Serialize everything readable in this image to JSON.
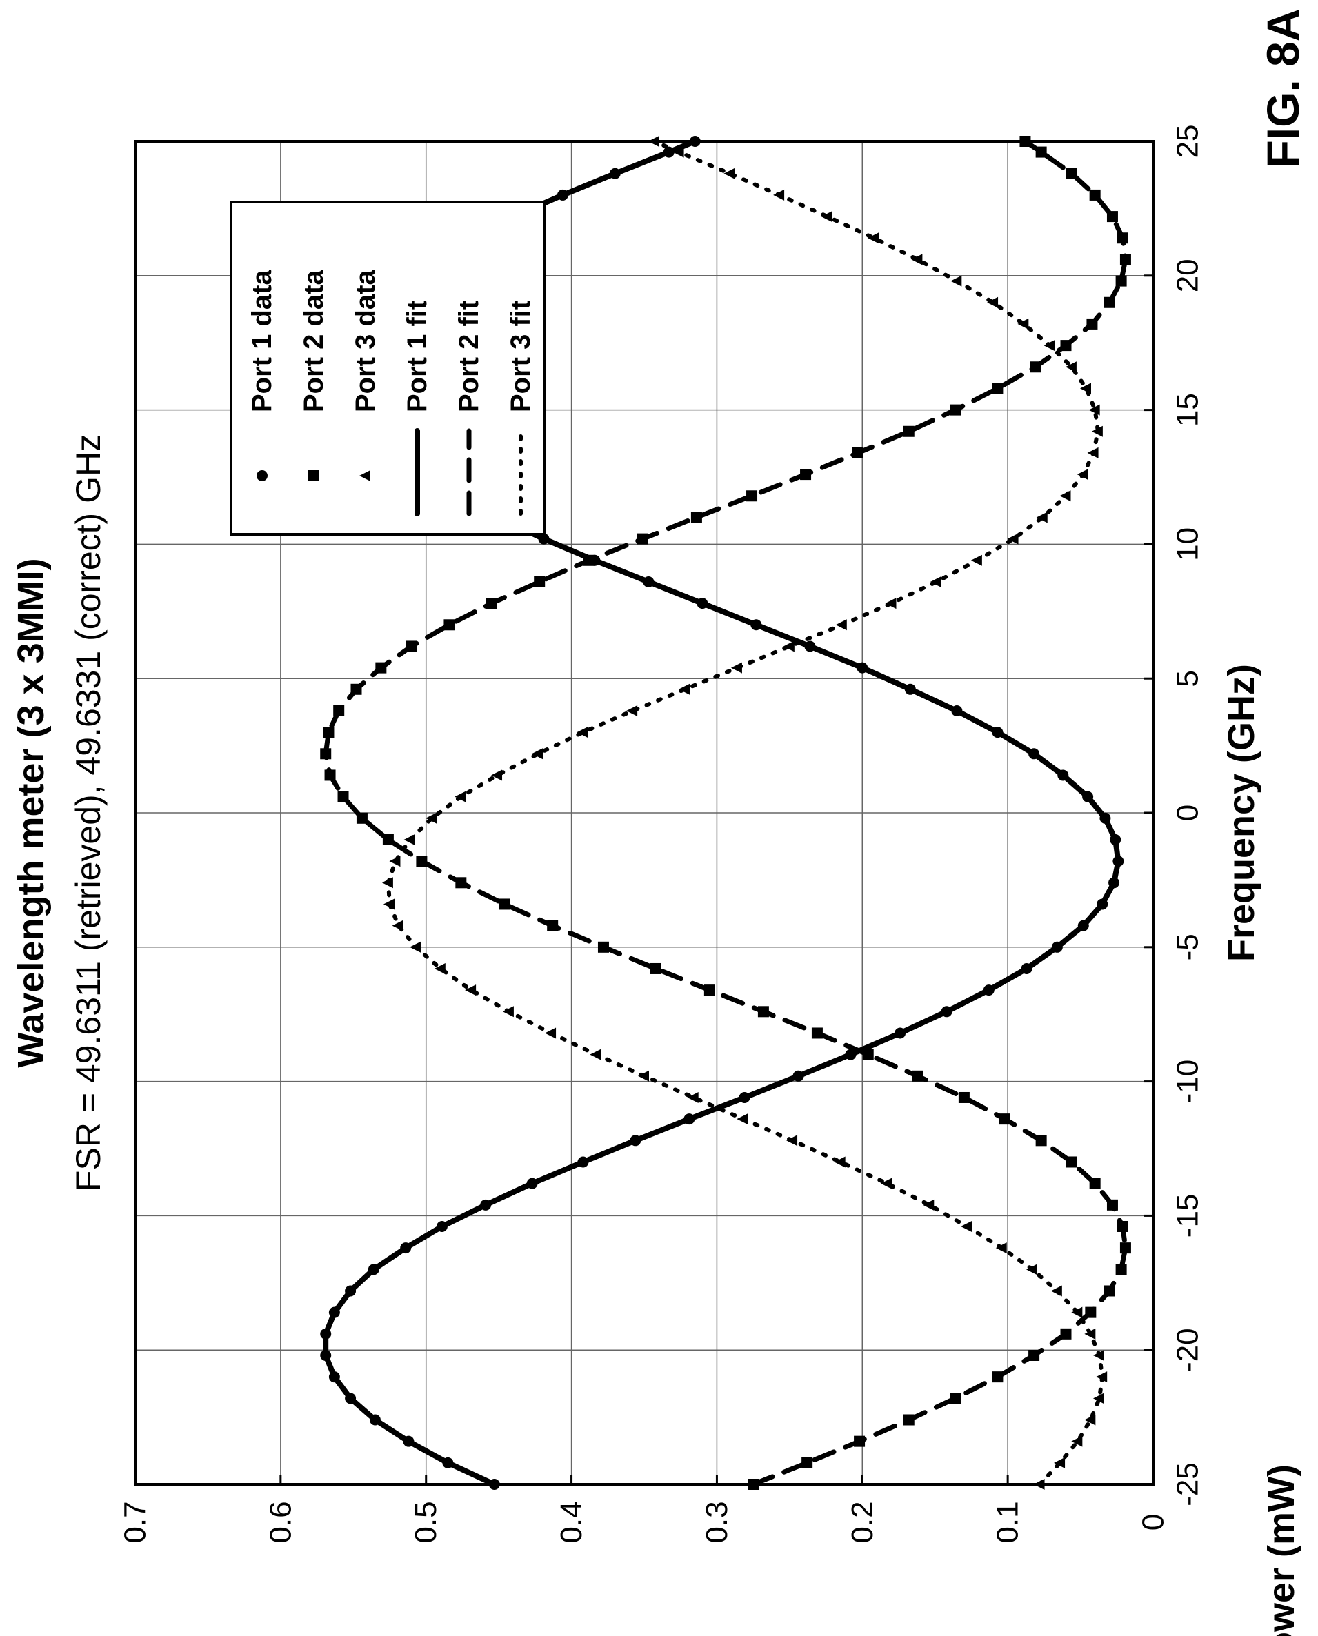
{
  "figure_label": "FIG. 8A",
  "chart_data": {
    "type": "scatter",
    "title": "Wavelength meter (3 x 3MMI)",
    "subtitle": "FSR = 49.6311 (retrieved), 49.6331 (correct) GHz",
    "xlabel": "Frequency (GHz)",
    "ylabel": "Power (mW)",
    "xlim": [
      -25,
      25
    ],
    "ylim": [
      0,
      0.7
    ],
    "xticks": [
      "-25",
      "-20",
      "-15",
      "-10",
      "-5",
      "0",
      "5",
      "10",
      "15",
      "20",
      "25"
    ],
    "yticks": [
      "0",
      "0.1",
      "0.2",
      "0.3",
      "0.4",
      "0.5",
      "0.6",
      "0.7"
    ],
    "grid": true,
    "legend_position": "top-left",
    "x": [
      -25.0,
      -24.2,
      -23.4,
      -22.6,
      -21.8,
      -21.0,
      -20.2,
      -19.4,
      -18.6,
      -17.8,
      -17.0,
      -16.2,
      -15.4,
      -14.6,
      -13.8,
      -13.0,
      -12.2,
      -11.4,
      -10.6,
      -9.8,
      -9.0,
      -8.2,
      -7.4,
      -6.6,
      -5.8,
      -5.0,
      -4.2,
      -3.4,
      -2.6,
      -1.8,
      -1.0,
      -0.2,
      0.6,
      1.4,
      2.2,
      3.0,
      3.8,
      4.6,
      5.4,
      6.2,
      7.0,
      7.8,
      8.6,
      9.4,
      10.2,
      11.0,
      11.8,
      12.6,
      13.4,
      14.2,
      15.0,
      15.8,
      16.6,
      17.4,
      18.2,
      19.0,
      19.8,
      20.6,
      21.4,
      22.2,
      23.0,
      23.8,
      24.6,
      25.0
    ],
    "series": [
      {
        "name": "Port 1 data",
        "marker": "circle",
        "color": "#000000",
        "values": [
          0.453,
          0.485,
          0.512,
          0.535,
          0.552,
          0.563,
          0.569,
          0.569,
          0.563,
          0.552,
          0.536,
          0.514,
          0.489,
          0.459,
          0.427,
          0.392,
          0.356,
          0.319,
          0.281,
          0.244,
          0.208,
          0.174,
          0.142,
          0.113,
          0.087,
          0.066,
          0.048,
          0.035,
          0.027,
          0.024,
          0.026,
          0.033,
          0.045,
          0.062,
          0.082,
          0.107,
          0.135,
          0.167,
          0.2,
          0.236,
          0.273,
          0.31,
          0.347,
          0.384,
          0.419,
          0.451,
          0.481,
          0.508,
          0.53,
          0.548,
          0.561,
          0.568,
          0.57,
          0.566,
          0.557,
          0.542,
          0.523,
          0.499,
          0.471,
          0.44,
          0.406,
          0.37,
          0.333,
          0.315
        ]
      },
      {
        "name": "Port 2 data",
        "marker": "square",
        "color": "#000000",
        "values": [
          0.275,
          0.238,
          0.202,
          0.168,
          0.136,
          0.107,
          0.082,
          0.06,
          0.043,
          0.03,
          0.022,
          0.019,
          0.021,
          0.028,
          0.04,
          0.056,
          0.077,
          0.102,
          0.13,
          0.162,
          0.196,
          0.231,
          0.268,
          0.305,
          0.342,
          0.378,
          0.413,
          0.446,
          0.476,
          0.503,
          0.526,
          0.544,
          0.557,
          0.566,
          0.569,
          0.567,
          0.56,
          0.548,
          0.531,
          0.51,
          0.484,
          0.455,
          0.422,
          0.388,
          0.351,
          0.314,
          0.276,
          0.239,
          0.203,
          0.168,
          0.136,
          0.107,
          0.081,
          0.06,
          0.042,
          0.03,
          0.022,
          0.019,
          0.021,
          0.028,
          0.04,
          0.056,
          0.077,
          0.088
        ]
      },
      {
        "name": "Port 3 data",
        "marker": "triangle",
        "color": "#000000",
        "values": [
          0.078,
          0.064,
          0.052,
          0.043,
          0.037,
          0.035,
          0.037,
          0.043,
          0.052,
          0.066,
          0.083,
          0.104,
          0.128,
          0.154,
          0.183,
          0.215,
          0.248,
          0.282,
          0.316,
          0.35,
          0.383,
          0.414,
          0.443,
          0.469,
          0.49,
          0.507,
          0.519,
          0.525,
          0.526,
          0.521,
          0.511,
          0.496,
          0.476,
          0.451,
          0.423,
          0.392,
          0.358,
          0.322,
          0.286,
          0.25,
          0.214,
          0.18,
          0.149,
          0.121,
          0.096,
          0.076,
          0.06,
          0.048,
          0.041,
          0.038,
          0.04,
          0.046,
          0.056,
          0.071,
          0.089,
          0.11,
          0.135,
          0.162,
          0.192,
          0.224,
          0.257,
          0.291,
          0.326,
          0.343
        ]
      }
    ],
    "fit_series": [
      {
        "name": "Port 1 fit",
        "line_style": "solid",
        "color": "#000000"
      },
      {
        "name": "Port 2 fit",
        "line_style": "dashed",
        "color": "#000000"
      },
      {
        "name": "Port 3 fit",
        "line_style": "dotted",
        "color": "#000000"
      }
    ]
  }
}
